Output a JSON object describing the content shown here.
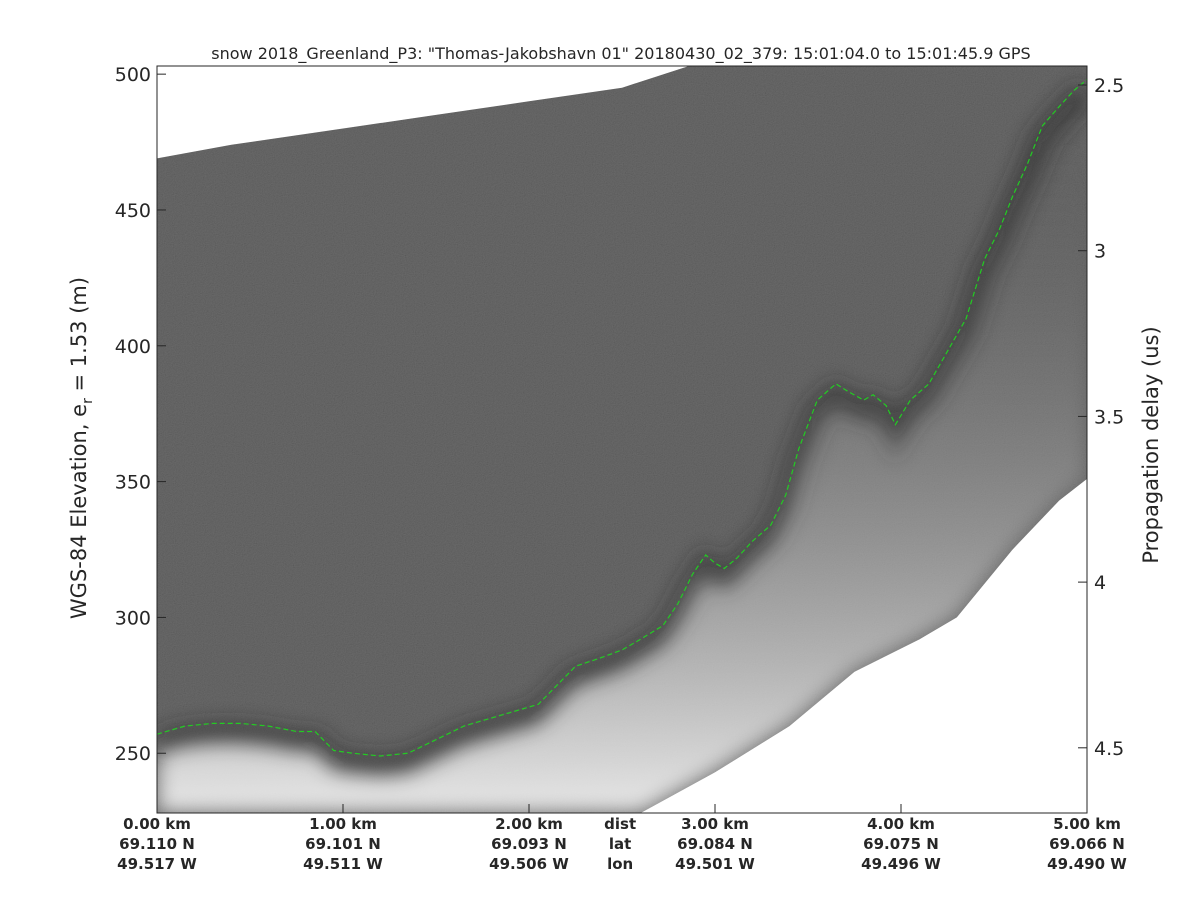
{
  "chart_data": {
    "type": "heatmap",
    "title": "snow 2018_Greenland_P3: \"Thomas-Jakobshavn 01\"  20180430_02_379: 15:01:04.0 to 15:01:45.9 GPS",
    "ylabel_left_prefix": "WGS-84 Elevation, e",
    "ylabel_left_sub": "r",
    "ylabel_left_suffix": " = 1.53 (m)",
    "ylabel_right": "Propagation delay (us)",
    "x_range_km": [
      0,
      5.0
    ],
    "y_left_range_m": [
      228,
      503
    ],
    "y_left_ticks": [
      250,
      300,
      350,
      400,
      450,
      500
    ],
    "y_right_ticks": [
      2.5,
      3,
      3.5,
      4,
      4.5
    ],
    "y_right_tick_elev_m": [
      496,
      435,
      374,
      313,
      252
    ],
    "colormap": "grayscale",
    "bottom_labels": [
      {
        "dist": "0.00 km",
        "lat": "69.110 N",
        "lon": "49.517 W",
        "x_km": 0.0
      },
      {
        "dist": "1.00 km",
        "lat": "69.101 N",
        "lon": "49.511 W",
        "x_km": 1.0
      },
      {
        "dist": "2.00 km",
        "lat": "69.093 N",
        "lon": "49.506 W",
        "x_km": 2.0
      },
      {
        "dist": "3.00 km",
        "lat": "69.084 N",
        "lon": "49.501 W",
        "x_km": 3.0
      },
      {
        "dist": "4.00 km",
        "lat": "69.075 N",
        "lon": "49.496 W",
        "x_km": 4.0
      },
      {
        "dist": "5.00 km",
        "lat": "69.066 N",
        "lon": "49.490 W",
        "x_km": 5.0
      }
    ],
    "row_labels": {
      "dist": "dist",
      "lat": "lat",
      "lon": "lon",
      "x_km": 2.49
    },
    "surface_top_m": [
      [
        0,
        469
      ],
      [
        0.4,
        474
      ],
      [
        1.0,
        480
      ],
      [
        1.5,
        485
      ],
      [
        2.0,
        490
      ],
      [
        2.5,
        495
      ],
      [
        2.86,
        503
      ],
      [
        5.0,
        503
      ]
    ],
    "data_bottom_m": [
      [
        0,
        228
      ],
      [
        2.6,
        228
      ],
      [
        3.0,
        243
      ],
      [
        3.4,
        260
      ],
      [
        3.75,
        280
      ],
      [
        4.1,
        292
      ],
      [
        4.3,
        300
      ],
      [
        4.6,
        325
      ],
      [
        4.85,
        343
      ],
      [
        5.0,
        351
      ]
    ],
    "bed_pick_line": {
      "color": "#22cc22",
      "style": "dashed",
      "points_m": [
        [
          0,
          257
        ],
        [
          0.15,
          260
        ],
        [
          0.3,
          261
        ],
        [
          0.45,
          261
        ],
        [
          0.6,
          260
        ],
        [
          0.75,
          258
        ],
        [
          0.85,
          258
        ],
        [
          0.95,
          251
        ],
        [
          1.05,
          250
        ],
        [
          1.2,
          249
        ],
        [
          1.35,
          250
        ],
        [
          1.5,
          255
        ],
        [
          1.65,
          260
        ],
        [
          1.8,
          263
        ],
        [
          1.95,
          266
        ],
        [
          2.05,
          268
        ],
        [
          2.15,
          275
        ],
        [
          2.25,
          282
        ],
        [
          2.38,
          285
        ],
        [
          2.5,
          288
        ],
        [
          2.6,
          292
        ],
        [
          2.72,
          297
        ],
        [
          2.8,
          305
        ],
        [
          2.88,
          316
        ],
        [
          2.95,
          323
        ],
        [
          3.0,
          320
        ],
        [
          3.05,
          318
        ],
        [
          3.12,
          322
        ],
        [
          3.2,
          328
        ],
        [
          3.3,
          334
        ],
        [
          3.38,
          345
        ],
        [
          3.45,
          362
        ],
        [
          3.55,
          380
        ],
        [
          3.65,
          386
        ],
        [
          3.72,
          383
        ],
        [
          3.8,
          380
        ],
        [
          3.85,
          382
        ],
        [
          3.92,
          378
        ],
        [
          3.97,
          371
        ],
        [
          4.05,
          380
        ],
        [
          4.15,
          386
        ],
        [
          4.25,
          398
        ],
        [
          4.35,
          410
        ],
        [
          4.45,
          432
        ],
        [
          4.53,
          443
        ],
        [
          4.6,
          455
        ],
        [
          4.68,
          467
        ],
        [
          4.76,
          481
        ],
        [
          4.85,
          488
        ],
        [
          4.93,
          494
        ],
        [
          5.0,
          498
        ]
      ]
    }
  }
}
